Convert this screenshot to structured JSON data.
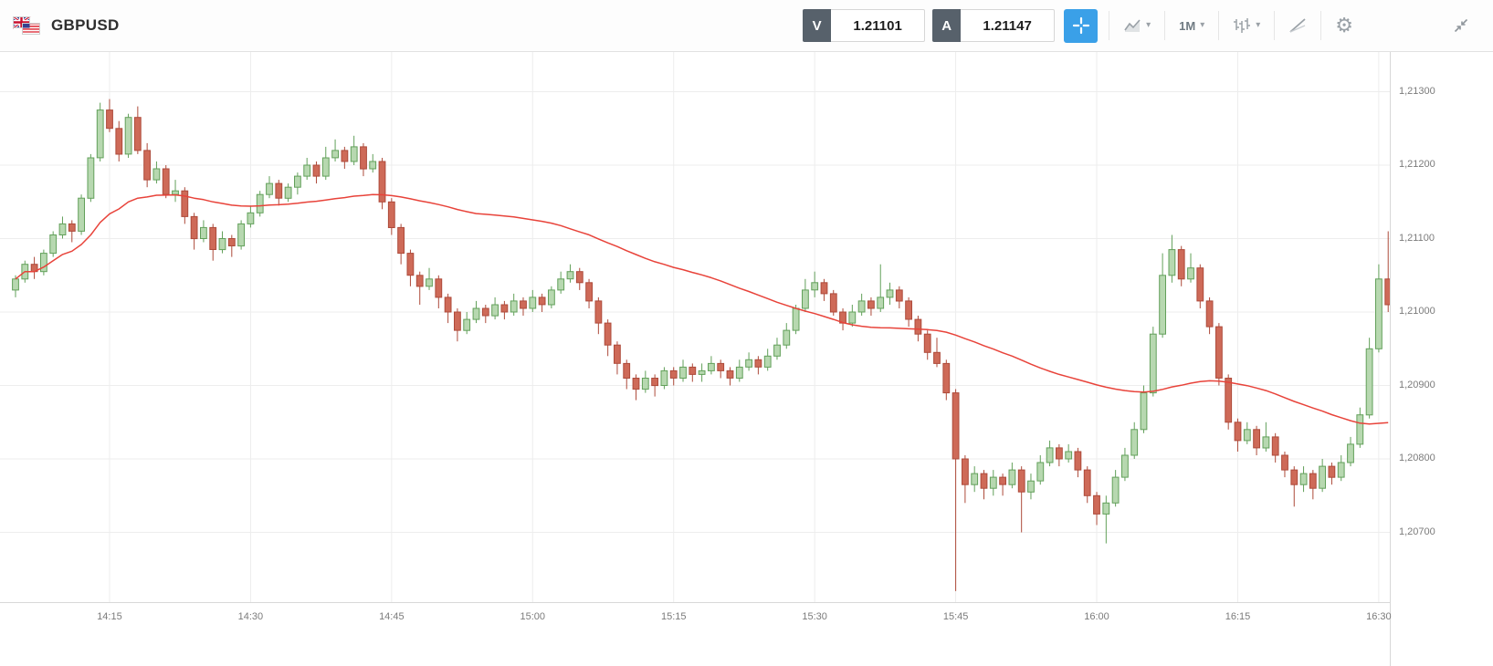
{
  "header": {
    "symbol": "GBPUSD",
    "quotes": {
      "sell_label": "V",
      "sell_value": "1.21101",
      "buy_label": "A",
      "buy_value": "1.21147"
    },
    "timeframe": "1M"
  },
  "chart_data": {
    "type": "candlestick",
    "symbol": "GBPUSD",
    "timeframe_minutes": 1,
    "start_time": "14:05",
    "end_time": "16:31",
    "price_encoding": "price = 1.20000 + value * 0.0001 (values below are in 0.1-pip points above 1.20000)",
    "candles_ohlc": [
      [
        103,
        105,
        102,
        104.5
      ],
      [
        104.5,
        107,
        104,
        106.5
      ],
      [
        106.5,
        107.5,
        104.5,
        105.5
      ],
      [
        105.5,
        108.5,
        105,
        108
      ],
      [
        108,
        111,
        107.5,
        110.5
      ],
      [
        110.5,
        113,
        110,
        112
      ],
      [
        112,
        112.5,
        109.5,
        111
      ],
      [
        111,
        116,
        110.5,
        115.5
      ],
      [
        115.5,
        121.5,
        115,
        121
      ],
      [
        121,
        128.5,
        120.5,
        127.5
      ],
      [
        127.5,
        129,
        124.5,
        125
      ],
      [
        125,
        126,
        120.5,
        121.5
      ],
      [
        121.5,
        127,
        121,
        126.5
      ],
      [
        126.5,
        128,
        121.5,
        122
      ],
      [
        122,
        123,
        117,
        118
      ],
      [
        118,
        120.5,
        117.5,
        119.5
      ],
      [
        119.5,
        120,
        115.5,
        116
      ],
      [
        116,
        118,
        115,
        116.5
      ],
      [
        116.5,
        117,
        112,
        113
      ],
      [
        113,
        113.5,
        108.5,
        110
      ],
      [
        110,
        112.5,
        109.5,
        111.5
      ],
      [
        111.5,
        112,
        107,
        108.5
      ],
      [
        108.5,
        111,
        108,
        110
      ],
      [
        110,
        110.5,
        107.5,
        109
      ],
      [
        109,
        112.5,
        108.5,
        112
      ],
      [
        112,
        114.5,
        111.5,
        113.5
      ],
      [
        113.5,
        116.5,
        113,
        116
      ],
      [
        116,
        118.5,
        115.5,
        117.5
      ],
      [
        117.5,
        118,
        114.5,
        115.5
      ],
      [
        115.5,
        117.5,
        115,
        117
      ],
      [
        117,
        119,
        116,
        118.5
      ],
      [
        118.5,
        121,
        118,
        120
      ],
      [
        120,
        120.5,
        117.5,
        118.5
      ],
      [
        118.5,
        122.5,
        118,
        121
      ],
      [
        121,
        123.5,
        120.5,
        122
      ],
      [
        122,
        122.5,
        119.5,
        120.5
      ],
      [
        120.5,
        124,
        120,
        122.5
      ],
      [
        122.5,
        123,
        118.5,
        119.5
      ],
      [
        119.5,
        121.5,
        119,
        120.5
      ],
      [
        120.5,
        121,
        114,
        115
      ],
      [
        115,
        115.5,
        110.5,
        111.5
      ],
      [
        111.5,
        112,
        106.5,
        108
      ],
      [
        108,
        108.5,
        103.5,
        105
      ],
      [
        105,
        105.5,
        101,
        103.5
      ],
      [
        103.5,
        106,
        103,
        104.5
      ],
      [
        104.5,
        105,
        100.5,
        102
      ],
      [
        102,
        102.5,
        98.5,
        100
      ],
      [
        100,
        100.5,
        96,
        97.5
      ],
      [
        97.5,
        100,
        97,
        99
      ],
      [
        99,
        101.5,
        98.5,
        100.5
      ],
      [
        100.5,
        101,
        98.5,
        99.5
      ],
      [
        99.5,
        102,
        99,
        101
      ],
      [
        101,
        101.5,
        99,
        100
      ],
      [
        100,
        102.5,
        99.5,
        101.5
      ],
      [
        101.5,
        102,
        99.5,
        100.5
      ],
      [
        100.5,
        103,
        100,
        102
      ],
      [
        102,
        102.5,
        100,
        101
      ],
      [
        101,
        103.5,
        100.5,
        103
      ],
      [
        103,
        105.5,
        102.5,
        104.5
      ],
      [
        104.5,
        106.5,
        104,
        105.5
      ],
      [
        105.5,
        106,
        103,
        104
      ],
      [
        104,
        104.5,
        100.5,
        101.5
      ],
      [
        101.5,
        102,
        97,
        98.5
      ],
      [
        98.5,
        99,
        94,
        95.5
      ],
      [
        95.5,
        96,
        91.5,
        93
      ],
      [
        93,
        93.5,
        89.5,
        91
      ],
      [
        91,
        91.5,
        88,
        89.5
      ],
      [
        89.5,
        92,
        89,
        91
      ],
      [
        91,
        91.5,
        88.5,
        90
      ],
      [
        90,
        92.5,
        89.5,
        92
      ],
      [
        92,
        92.5,
        90,
        91
      ],
      [
        91,
        93.5,
        90.5,
        92.5
      ],
      [
        92.5,
        93,
        90.5,
        91.5
      ],
      [
        91.5,
        93,
        90.5,
        92
      ],
      [
        92,
        94,
        91.5,
        93
      ],
      [
        93,
        93.5,
        91,
        92
      ],
      [
        92,
        92.5,
        90,
        91
      ],
      [
        91,
        93.5,
        90.5,
        92.5
      ],
      [
        92.5,
        94.5,
        92,
        93.5
      ],
      [
        93.5,
        94,
        91.5,
        92.5
      ],
      [
        92.5,
        95,
        92,
        94
      ],
      [
        94,
        96.5,
        93.5,
        95.5
      ],
      [
        95.5,
        98.5,
        95,
        97.5
      ],
      [
        97.5,
        101,
        97,
        100.5
      ],
      [
        100.5,
        104.5,
        100,
        103
      ],
      [
        103,
        105.5,
        102,
        104
      ],
      [
        104,
        104.5,
        101.5,
        102.5
      ],
      [
        102.5,
        103,
        99.5,
        100
      ],
      [
        100,
        100.5,
        97.5,
        98.5
      ],
      [
        98.5,
        101,
        98,
        100
      ],
      [
        100,
        102.5,
        99.5,
        101.5
      ],
      [
        101.5,
        102,
        99.5,
        100.5
      ],
      [
        100.5,
        106.5,
        100,
        102
      ],
      [
        102,
        104,
        101,
        103
      ],
      [
        103,
        103.5,
        100.5,
        101.5
      ],
      [
        101.5,
        102,
        98,
        99
      ],
      [
        99,
        99.5,
        96,
        97
      ],
      [
        97,
        97.5,
        93.5,
        94.5
      ],
      [
        94.5,
        96.5,
        92.5,
        93
      ],
      [
        93,
        93.5,
        88,
        89
      ],
      [
        89,
        89.5,
        62,
        80
      ],
      [
        80,
        80.5,
        74,
        76.5
      ],
      [
        76.5,
        79,
        75.5,
        78
      ],
      [
        78,
        78.5,
        74.5,
        76
      ],
      [
        76,
        78.5,
        75,
        77.5
      ],
      [
        77.5,
        78,
        75,
        76.5
      ],
      [
        76.5,
        79.5,
        76,
        78.5
      ],
      [
        78.5,
        79,
        70,
        75.5
      ],
      [
        75.5,
        78,
        74.5,
        77
      ],
      [
        77,
        80.5,
        76.5,
        79.5
      ],
      [
        79.5,
        82.5,
        79,
        81.5
      ],
      [
        81.5,
        82,
        79,
        80
      ],
      [
        80,
        82,
        79.5,
        81
      ],
      [
        81,
        81.5,
        77.5,
        78.5
      ],
      [
        78.5,
        79,
        74,
        75
      ],
      [
        75,
        75.5,
        71,
        72.5
      ],
      [
        72.5,
        75,
        68.5,
        74
      ],
      [
        74,
        78.5,
        73.5,
        77.5
      ],
      [
        77.5,
        81.5,
        77,
        80.5
      ],
      [
        80.5,
        85,
        80,
        84
      ],
      [
        84,
        90,
        83.5,
        89
      ],
      [
        89,
        98,
        88.5,
        97
      ],
      [
        97,
        108,
        96.5,
        105
      ],
      [
        105,
        110.5,
        104,
        108.5
      ],
      [
        108.5,
        109,
        103.5,
        104.5
      ],
      [
        104.5,
        108,
        104,
        106
      ],
      [
        106,
        106.5,
        100.5,
        101.5
      ],
      [
        101.5,
        102,
        97,
        98
      ],
      [
        98,
        98.5,
        90,
        91
      ],
      [
        91,
        91.5,
        84,
        85
      ],
      [
        85,
        85.5,
        81,
        82.5
      ],
      [
        82.5,
        85,
        82,
        84
      ],
      [
        84,
        84.5,
        80.5,
        81.5
      ],
      [
        81.5,
        85,
        81,
        83
      ],
      [
        83,
        83.5,
        79.5,
        80.5
      ],
      [
        80.5,
        81,
        77.5,
        78.5
      ],
      [
        78.5,
        79,
        73.5,
        76.5
      ],
      [
        76.5,
        79,
        75.5,
        78
      ],
      [
        78,
        78.5,
        74.5,
        76
      ],
      [
        76,
        80,
        75.5,
        79
      ],
      [
        79,
        79.5,
        76.5,
        77.5
      ],
      [
        77.5,
        80.5,
        77,
        79.5
      ],
      [
        79.5,
        83,
        79,
        82
      ],
      [
        82,
        87,
        81.5,
        86
      ],
      [
        86,
        96.5,
        85.5,
        95
      ],
      [
        95,
        106.5,
        94.5,
        104.5
      ],
      [
        104.5,
        111,
        100,
        101
      ]
    ],
    "overlay": {
      "type": "sma",
      "period": 50
    },
    "y_axis": {
      "labels": [
        "1,21300",
        "1,21200",
        "1,21100",
        "1,21000",
        "1,20900",
        "1,20800",
        "1,20700"
      ],
      "values": [
        1.213,
        1.212,
        1.211,
        1.21,
        1.209,
        1.208,
        1.207
      ]
    },
    "x_axis": {
      "labels": [
        "14:15",
        "14:30",
        "14:45",
        "15:00",
        "15:15",
        "15:30",
        "15:45",
        "16:00",
        "16:15",
        "16:30"
      ]
    },
    "colors": {
      "up_fill": "#b7d8b0",
      "up_stroke": "#62a05a",
      "down_fill": "#ce6a58",
      "down_stroke": "#ad4a3a",
      "ma": "#e8433a",
      "grid": "#ededed",
      "axis_text": "#7b7b7b",
      "accent_blue": "#3aa0e8",
      "dark_button": "#57616b"
    }
  }
}
